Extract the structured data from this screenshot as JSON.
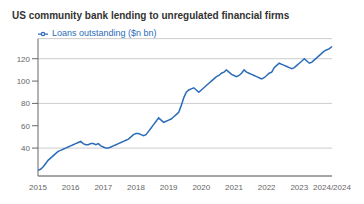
{
  "chart_data": {
    "type": "line",
    "title": "US community bank lending to unregulated financial firms",
    "categories": [
      "2015",
      null,
      null,
      null,
      null,
      null,
      null,
      null,
      null,
      null,
      null,
      null,
      null,
      "2016",
      null,
      null,
      null,
      null,
      null,
      null,
      null,
      null,
      null,
      null,
      null,
      null,
      "2017",
      null,
      null,
      null,
      null,
      null,
      null,
      null,
      null,
      null,
      null,
      null,
      null,
      "2018",
      null,
      null,
      null,
      null,
      null,
      null,
      null,
      null,
      null,
      null,
      null,
      null,
      "2019",
      null,
      null,
      null,
      null,
      null,
      null,
      null,
      null,
      null,
      null,
      null,
      null,
      "2020",
      null,
      null,
      null,
      null,
      null,
      null,
      null,
      null,
      null,
      null,
      null,
      null,
      "2021",
      null,
      null,
      null,
      null,
      null,
      null,
      null,
      null,
      null,
      null,
      null,
      null,
      "2022",
      null,
      null,
      null,
      null,
      null,
      null,
      null,
      null,
      null,
      null,
      null,
      null,
      "2023",
      null,
      null,
      null,
      null,
      null,
      null,
      null,
      null,
      null,
      null,
      null,
      null,
      "2024/2024"
    ],
    "series": [
      {
        "name": "Loans outstanding ($n bn)",
        "color": "#2b6cb8",
        "values": [
          20,
          21,
          23,
          26,
          29,
          31,
          33,
          35,
          37,
          38,
          39,
          40,
          41,
          42,
          43,
          44,
          45,
          46,
          44,
          43,
          43,
          44,
          44,
          43,
          44,
          42,
          41,
          40,
          40,
          41,
          42,
          43,
          44,
          45,
          46,
          47,
          48,
          50,
          52,
          53,
          53,
          52,
          51,
          52,
          55,
          58,
          61,
          64,
          67,
          65,
          63,
          64,
          65,
          66,
          68,
          70,
          72,
          78,
          85,
          90,
          92,
          93,
          94,
          92,
          90,
          92,
          94,
          96,
          98,
          100,
          102,
          104,
          105,
          107,
          108,
          110,
          108,
          106,
          105,
          104,
          105,
          107,
          110,
          108,
          107,
          106,
          105,
          104,
          103,
          102,
          103,
          105,
          107,
          108,
          112,
          114,
          116,
          115,
          114,
          113,
          112,
          111,
          112,
          114,
          116,
          118,
          120,
          118,
          116,
          117,
          119,
          121,
          123,
          125,
          127,
          128,
          129,
          131
        ]
      }
    ],
    "ylim": [
      15,
      138
    ],
    "yticks": [
      40,
      60,
      80,
      100,
      120
    ],
    "grid": true,
    "legend": "upper left"
  }
}
